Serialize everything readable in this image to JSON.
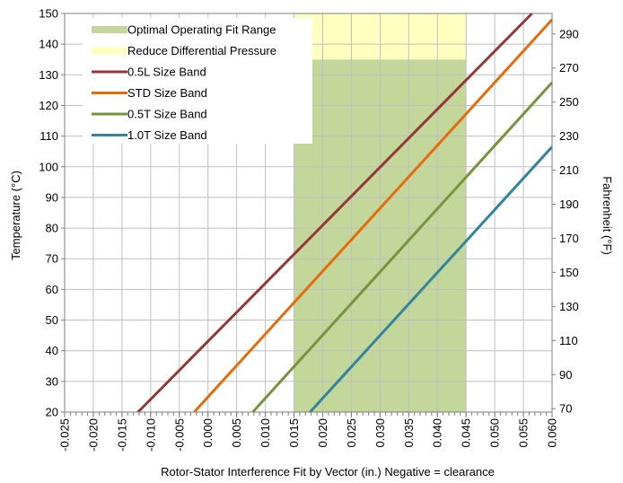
{
  "chart_data": {
    "type": "line",
    "x": {
      "label": "Rotor-Stator Interference Fit by Vector (in.) Negative = clearance",
      "min": -0.025,
      "max": 0.06,
      "major_ticks": [
        "-0.025",
        "-0.020",
        "-0.015",
        "-0.010",
        "-0.005",
        "0.000",
        "0.005",
        "0.010",
        "0.015",
        "0.020",
        "0.025",
        "0.030",
        "0.035",
        "0.040",
        "0.045",
        "0.050",
        "0.055",
        "0.060"
      ],
      "minor_step": 0.001
    },
    "y_left": {
      "label": "Temperature (°C)",
      "min": 20,
      "max": 150,
      "ticks": [
        "20",
        "30",
        "40",
        "50",
        "60",
        "70",
        "80",
        "90",
        "100",
        "110",
        "120",
        "130",
        "140",
        "150"
      ]
    },
    "y_right": {
      "label": "Fahrenheit (°F)",
      "ticks": [
        "70",
        "90",
        "110",
        "130",
        "150",
        "170",
        "190",
        "210",
        "230",
        "250",
        "270",
        "290"
      ]
    },
    "grid": true,
    "legend_position": "top-left",
    "regions": [
      {
        "name": "Optimal Operating Fit Range",
        "x": [
          0.015,
          0.045
        ],
        "y": [
          20,
          135
        ],
        "color": "#c4d79b"
      },
      {
        "name": "Reduce Differential Pressure",
        "x": [
          0.015,
          0.045
        ],
        "y": [
          135,
          150
        ],
        "color": "#ffffc0"
      }
    ],
    "series": [
      {
        "name": "0.5L Size Band",
        "color": "#953735",
        "points": [
          [
            -0.0122,
            20
          ],
          [
            0.0565,
            150
          ]
        ]
      },
      {
        "name": "STD Size Band",
        "color": "#e46c0a",
        "points": [
          [
            -0.0024,
            20
          ],
          [
            0.06,
            148
          ]
        ]
      },
      {
        "name": "0.5T Size Band",
        "color": "#77933c",
        "points": [
          [
            0.0078,
            20
          ],
          [
            0.06,
            127.5
          ]
        ]
      },
      {
        "name": "1.0T Size Band",
        "color": "#31859c",
        "points": [
          [
            0.0178,
            20
          ],
          [
            0.06,
            106.5
          ]
        ]
      }
    ]
  }
}
